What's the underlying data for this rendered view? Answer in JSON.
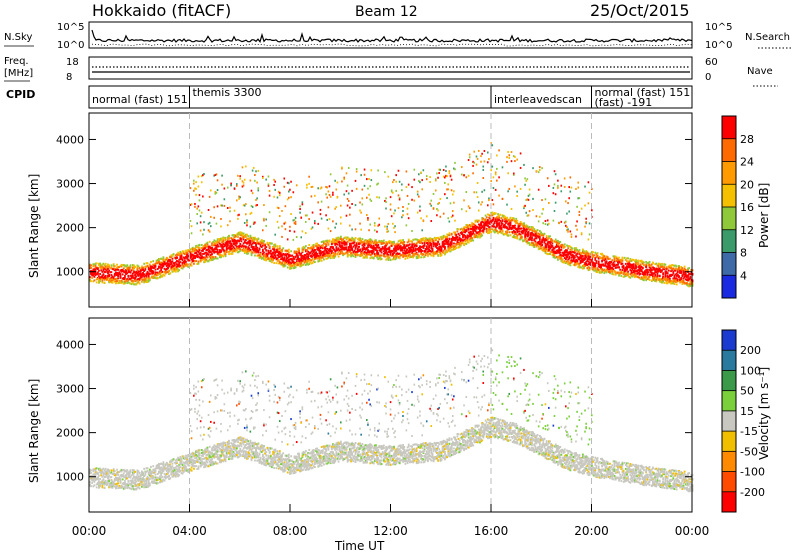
{
  "header": {
    "station": "Hokkaido (fitACF)",
    "beam": "Beam 12",
    "date": "25/Oct/2015"
  },
  "summary": {
    "nsky_label": "N.Sky",
    "nsky_ticks": [
      "10^5",
      "10^0"
    ],
    "nsearch_label": "N.Search",
    "freq_label_1": "Freq.",
    "freq_label_2": "[MHz]",
    "freq_ticks": [
      "18",
      "8"
    ],
    "nave_label": "Nave",
    "nave_ticks": [
      "60",
      "0"
    ],
    "cpid_label": "CPID",
    "cpid_segments": [
      {
        "label": "normal (fast) 151",
        "start_h": 0,
        "end_h": 4
      },
      {
        "label": "themis 3300",
        "start_h": 4,
        "end_h": 16
      },
      {
        "label": "interleavedscan",
        "start_h": 16,
        "end_h": 20
      },
      {
        "label": "normal (fast) 151",
        "start_h": 20,
        "end_h": 24
      }
    ],
    "cpid_extra": "(fast) -191"
  },
  "chart_data": [
    {
      "type": "heatmap",
      "name": "power",
      "ylabel": "Slant Range [km]",
      "xlabel": "",
      "yticks": [
        1000,
        2000,
        3000,
        4000
      ],
      "ylim": [
        200,
        4600
      ],
      "xlim": [
        0,
        24
      ],
      "colorbar_label": "Power [dB]",
      "colorbar_ticks": [
        "28",
        "24",
        "20",
        "16",
        "12",
        "8",
        "4"
      ],
      "colorbar_colors": [
        "#ff0000",
        "#ff6a00",
        "#ff9a00",
        "#f5c000",
        "#8fc93a",
        "#3a9a6a",
        "#3f6aa8",
        "#1a2ae0"
      ],
      "dashed_lines_h": [
        4,
        16,
        20
      ],
      "band_center_km": [
        [
          0,
          1000
        ],
        [
          2,
          950
        ],
        [
          4,
          1350
        ],
        [
          6,
          1700
        ],
        [
          8,
          1300
        ],
        [
          10,
          1600
        ],
        [
          12,
          1500
        ],
        [
          14,
          1600
        ],
        [
          16,
          2150
        ],
        [
          17,
          2000
        ],
        [
          19,
          1400
        ],
        [
          20,
          1250
        ],
        [
          22,
          1050
        ],
        [
          24,
          900
        ]
      ]
    },
    {
      "type": "heatmap",
      "name": "velocity",
      "ylabel": "Slant Range [km]",
      "xlabel": "Time UT",
      "xticks": [
        "00:00",
        "04:00",
        "08:00",
        "12:00",
        "16:00",
        "20:00",
        "00:00"
      ],
      "yticks": [
        1000,
        2000,
        3000,
        4000
      ],
      "ylim": [
        200,
        4600
      ],
      "xlim": [
        0,
        24
      ],
      "colorbar_label": "Velocity [m s⁻¹]",
      "colorbar_ticks": [
        "200",
        "100",
        "50",
        "15",
        "-15",
        "-50",
        "-100",
        "-200"
      ],
      "colorbar_colors": [
        "#1a3ad0",
        "#2a7aa0",
        "#3a9a4a",
        "#7ad03a",
        "#c8c8c0",
        "#f0c000",
        "#ff8a00",
        "#ff4a00",
        "#ff0000"
      ],
      "dashed_lines_h": [
        4,
        16,
        20
      ]
    }
  ]
}
